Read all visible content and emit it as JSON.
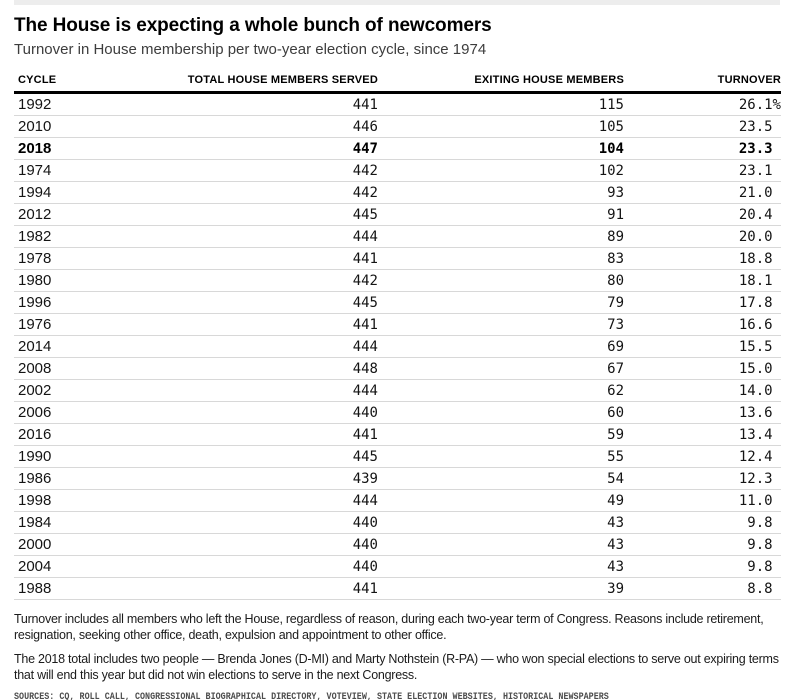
{
  "header": {
    "title": "The House is expecting a whole bunch of newcomers",
    "subtitle": "Turnover in House membership per two-year election cycle, since 1974"
  },
  "chart_data": {
    "type": "table",
    "title": "The House is expecting a whole bunch of newcomers",
    "subtitle": "Turnover in House membership per two-year election cycle, since 1974",
    "columns": [
      "CYCLE",
      "TOTAL HOUSE MEMBERS SERVED",
      "EXITING HOUSE MEMBERS",
      "TURNOVER"
    ],
    "turnover_unit": "%",
    "highlighted_cycle": 2018,
    "rows": [
      {
        "cycle": 1992,
        "total_served": 441,
        "exiting": 115,
        "turnover_pct": 26.1,
        "turnover_display": "26.1%",
        "bold": false
      },
      {
        "cycle": 2010,
        "total_served": 446,
        "exiting": 105,
        "turnover_pct": 23.5,
        "turnover_display": "23.5",
        "bold": false
      },
      {
        "cycle": 2018,
        "total_served": 447,
        "exiting": 104,
        "turnover_pct": 23.3,
        "turnover_display": "23.3",
        "bold": true
      },
      {
        "cycle": 1974,
        "total_served": 442,
        "exiting": 102,
        "turnover_pct": 23.1,
        "turnover_display": "23.1",
        "bold": false
      },
      {
        "cycle": 1994,
        "total_served": 442,
        "exiting": 93,
        "turnover_pct": 21.0,
        "turnover_display": "21.0",
        "bold": false
      },
      {
        "cycle": 2012,
        "total_served": 445,
        "exiting": 91,
        "turnover_pct": 20.4,
        "turnover_display": "20.4",
        "bold": false
      },
      {
        "cycle": 1982,
        "total_served": 444,
        "exiting": 89,
        "turnover_pct": 20.0,
        "turnover_display": "20.0",
        "bold": false
      },
      {
        "cycle": 1978,
        "total_served": 441,
        "exiting": 83,
        "turnover_pct": 18.8,
        "turnover_display": "18.8",
        "bold": false
      },
      {
        "cycle": 1980,
        "total_served": 442,
        "exiting": 80,
        "turnover_pct": 18.1,
        "turnover_display": "18.1",
        "bold": false
      },
      {
        "cycle": 1996,
        "total_served": 445,
        "exiting": 79,
        "turnover_pct": 17.8,
        "turnover_display": "17.8",
        "bold": false
      },
      {
        "cycle": 1976,
        "total_served": 441,
        "exiting": 73,
        "turnover_pct": 16.6,
        "turnover_display": "16.6",
        "bold": false
      },
      {
        "cycle": 2014,
        "total_served": 444,
        "exiting": 69,
        "turnover_pct": 15.5,
        "turnover_display": "15.5",
        "bold": false
      },
      {
        "cycle": 2008,
        "total_served": 448,
        "exiting": 67,
        "turnover_pct": 15.0,
        "turnover_display": "15.0",
        "bold": false
      },
      {
        "cycle": 2002,
        "total_served": 444,
        "exiting": 62,
        "turnover_pct": 14.0,
        "turnover_display": "14.0",
        "bold": false
      },
      {
        "cycle": 2006,
        "total_served": 440,
        "exiting": 60,
        "turnover_pct": 13.6,
        "turnover_display": "13.6",
        "bold": false
      },
      {
        "cycle": 2016,
        "total_served": 441,
        "exiting": 59,
        "turnover_pct": 13.4,
        "turnover_display": "13.4",
        "bold": false
      },
      {
        "cycle": 1990,
        "total_served": 445,
        "exiting": 55,
        "turnover_pct": 12.4,
        "turnover_display": "12.4",
        "bold": false
      },
      {
        "cycle": 1986,
        "total_served": 439,
        "exiting": 54,
        "turnover_pct": 12.3,
        "turnover_display": "12.3",
        "bold": false
      },
      {
        "cycle": 1998,
        "total_served": 444,
        "exiting": 49,
        "turnover_pct": 11.0,
        "turnover_display": "11.0",
        "bold": false
      },
      {
        "cycle": 1984,
        "total_served": 440,
        "exiting": 43,
        "turnover_pct": 9.8,
        "turnover_display": "9.8",
        "bold": false
      },
      {
        "cycle": 2000,
        "total_served": 440,
        "exiting": 43,
        "turnover_pct": 9.8,
        "turnover_display": "9.8",
        "bold": false
      },
      {
        "cycle": 2004,
        "total_served": 440,
        "exiting": 43,
        "turnover_pct": 9.8,
        "turnover_display": "9.8",
        "bold": false
      },
      {
        "cycle": 1988,
        "total_served": 441,
        "exiting": 39,
        "turnover_pct": 8.8,
        "turnover_display": "8.8",
        "bold": false
      }
    ]
  },
  "notes": {
    "note1": "Turnover includes all members who left the House, regardless of reason, during each two-year term of Congress. Reasons include retirement, resignation, seeking other office, death, expulsion and appointment to other office.",
    "note2": "The 2018 total includes two people — Brenda Jones (D-MI) and Marty Nothstein (R-PA) — who won special elections to serve out expiring terms that will end this year but did not win elections to serve in the next Congress.",
    "sources": "SOURCES: CQ, ROLL CALL, CONGRESSIONAL BIOGRAPHICAL DIRECTORY, VOTEVIEW, STATE ELECTION WEBSITES, HISTORICAL NEWSPAPERS"
  },
  "colors": {
    "background": "#ffffff",
    "header_rule": "#000000",
    "row_divider": "#d8d8d8",
    "top_bar": "#ededed",
    "title_text": "#000000",
    "subtitle_text": "#3d3d3d",
    "note_text": "#1b1b1b",
    "sources_text": "#4d4d4d"
  }
}
